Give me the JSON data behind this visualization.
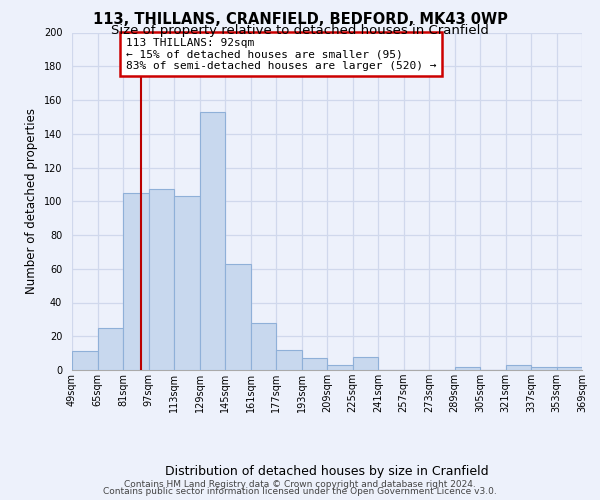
{
  "title": "113, THILLANS, CRANFIELD, BEDFORD, MK43 0WP",
  "subtitle": "Size of property relative to detached houses in Cranfield",
  "xlabel": "Distribution of detached houses by size in Cranfield",
  "ylabel": "Number of detached properties",
  "bar_color": "#c8d8ee",
  "bar_edge_color": "#8fb0d8",
  "vline_color": "#bb0000",
  "vline_x": 92,
  "annotation_text": "113 THILLANS: 92sqm\n← 15% of detached houses are smaller (95)\n83% of semi-detached houses are larger (520) →",
  "annotation_box_color": "#ffffff",
  "annotation_box_edge": "#cc0000",
  "footer1": "Contains HM Land Registry data © Crown copyright and database right 2024.",
  "footer2": "Contains public sector information licensed under the Open Government Licence v3.0.",
  "bins_left": [
    49,
    65,
    81,
    97,
    113,
    129,
    145,
    161,
    177,
    193,
    209,
    225,
    241,
    257,
    273,
    289,
    305,
    321,
    337,
    353
  ],
  "bin_width": 16,
  "counts": [
    11,
    25,
    105,
    107,
    103,
    153,
    63,
    28,
    12,
    7,
    3,
    8,
    0,
    0,
    0,
    2,
    0,
    3,
    2,
    2
  ],
  "ylim": [
    0,
    200
  ],
  "yticks": [
    0,
    20,
    40,
    60,
    80,
    100,
    120,
    140,
    160,
    180,
    200
  ],
  "xtick_labels": [
    "49sqm",
    "65sqm",
    "81sqm",
    "97sqm",
    "113sqm",
    "129sqm",
    "145sqm",
    "161sqm",
    "177sqm",
    "193sqm",
    "209sqm",
    "225sqm",
    "241sqm",
    "257sqm",
    "273sqm",
    "289sqm",
    "305sqm",
    "321sqm",
    "337sqm",
    "353sqm",
    "369sqm"
  ],
  "background_color": "#edf1fb",
  "grid_color": "#d0d8ec",
  "title_fontsize": 10.5,
  "subtitle_fontsize": 9.5,
  "axis_label_fontsize": 8.5,
  "tick_fontsize": 7,
  "annotation_fontsize": 8,
  "footer_fontsize": 6.5
}
